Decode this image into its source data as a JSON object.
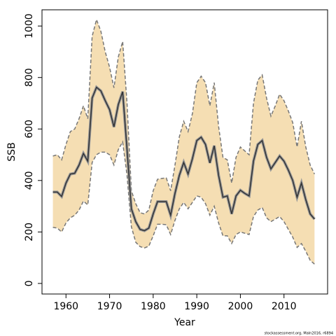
{
  "chart_data": {
    "type": "band-line",
    "x_label": "Year",
    "y_label": "SSB",
    "footer": "stockassessment.org, Maln2016, r6894",
    "x": [
      1957,
      1958,
      1959,
      1960,
      1961,
      1962,
      1963,
      1964,
      1965,
      1966,
      1967,
      1968,
      1969,
      1970,
      1971,
      1972,
      1973,
      1974,
      1975,
      1976,
      1977,
      1978,
      1979,
      1980,
      1981,
      1982,
      1983,
      1984,
      1985,
      1986,
      1987,
      1988,
      1989,
      1990,
      1991,
      1992,
      1993,
      1994,
      1995,
      1996,
      1997,
      1998,
      1999,
      2000,
      2001,
      2002,
      2003,
      2004,
      2005,
      2006,
      2007,
      2008,
      2009,
      2010,
      2011,
      2012,
      2013,
      2014,
      2015,
      2016,
      2017
    ],
    "values": [
      355,
      355,
      338,
      390,
      425,
      428,
      460,
      505,
      475,
      720,
      762,
      748,
      710,
      675,
      608,
      695,
      745,
      520,
      290,
      240,
      210,
      205,
      215,
      270,
      318,
      318,
      318,
      265,
      350,
      420,
      470,
      425,
      485,
      555,
      568,
      540,
      468,
      535,
      420,
      335,
      340,
      270,
      340,
      362,
      350,
      340,
      475,
      540,
      555,
      490,
      445,
      470,
      495,
      475,
      440,
      400,
      335,
      390,
      325,
      270,
      250
    ],
    "lower": [
      218,
      215,
      200,
      235,
      255,
      265,
      285,
      320,
      305,
      470,
      500,
      510,
      510,
      500,
      460,
      520,
      550,
      420,
      220,
      160,
      143,
      138,
      145,
      185,
      230,
      230,
      228,
      190,
      245,
      290,
      315,
      290,
      315,
      340,
      335,
      310,
      265,
      300,
      235,
      185,
      185,
      155,
      190,
      200,
      195,
      190,
      260,
      285,
      295,
      255,
      240,
      250,
      260,
      240,
      210,
      180,
      140,
      155,
      125,
      90,
      75
    ],
    "upper": [
      495,
      500,
      480,
      540,
      590,
      600,
      640,
      690,
      640,
      960,
      1025,
      980,
      900,
      840,
      760,
      880,
      940,
      700,
      360,
      310,
      275,
      270,
      285,
      360,
      405,
      408,
      410,
      360,
      460,
      570,
      630,
      590,
      660,
      780,
      805,
      780,
      690,
      780,
      610,
      490,
      480,
      390,
      490,
      530,
      515,
      500,
      700,
      790,
      810,
      720,
      650,
      690,
      735,
      710,
      670,
      625,
      530,
      630,
      530,
      460,
      425
    ],
    "color": "#333333",
    "band_color": "#f5deb3",
    "band_edge_color": "#777777",
    "xlim": [
      1954.5,
      2020
    ],
    "ylim": [
      -41,
      1063
    ],
    "xticks": [
      1960,
      1970,
      1980,
      1990,
      2000,
      2010
    ],
    "yticks": [
      0,
      200,
      400,
      600,
      800,
      1000
    ]
  }
}
